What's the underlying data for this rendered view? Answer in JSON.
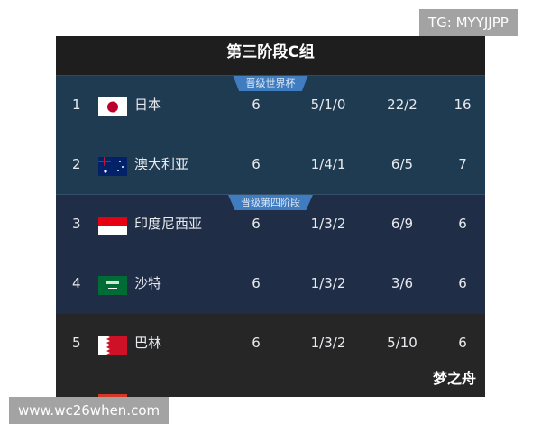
{
  "title": "第三阶段C组",
  "sections": [
    {
      "badge": "晋级世界杯",
      "color": "#1f3b52"
    },
    {
      "badge": "晋级第四阶段",
      "color": "#1f2d46"
    }
  ],
  "rows": [
    {
      "rank": "1",
      "team": "日本",
      "flag": "japan-flag",
      "played": "6",
      "wdl": "5/1/0",
      "goals": "22/2",
      "points": "16"
    },
    {
      "rank": "2",
      "team": "澳大利亚",
      "flag": "australia-flag",
      "played": "6",
      "wdl": "1/4/1",
      "goals": "6/5",
      "points": "7"
    },
    {
      "rank": "3",
      "team": "印度尼西亚",
      "flag": "indonesia-flag",
      "played": "6",
      "wdl": "1/3/2",
      "goals": "6/9",
      "points": "6"
    },
    {
      "rank": "4",
      "team": "沙特",
      "flag": "saudi-flag",
      "played": "6",
      "wdl": "1/3/2",
      "goals": "3/6",
      "points": "6"
    },
    {
      "rank": "5",
      "team": "巴林",
      "flag": "bahrain-flag",
      "played": "6",
      "wdl": "1/3/2",
      "goals": "5/10",
      "points": "6"
    }
  ],
  "signature": "梦之舟",
  "watermarks": {
    "top": "TG: MYYJJPP",
    "bottom": "www.wc26when.com"
  }
}
